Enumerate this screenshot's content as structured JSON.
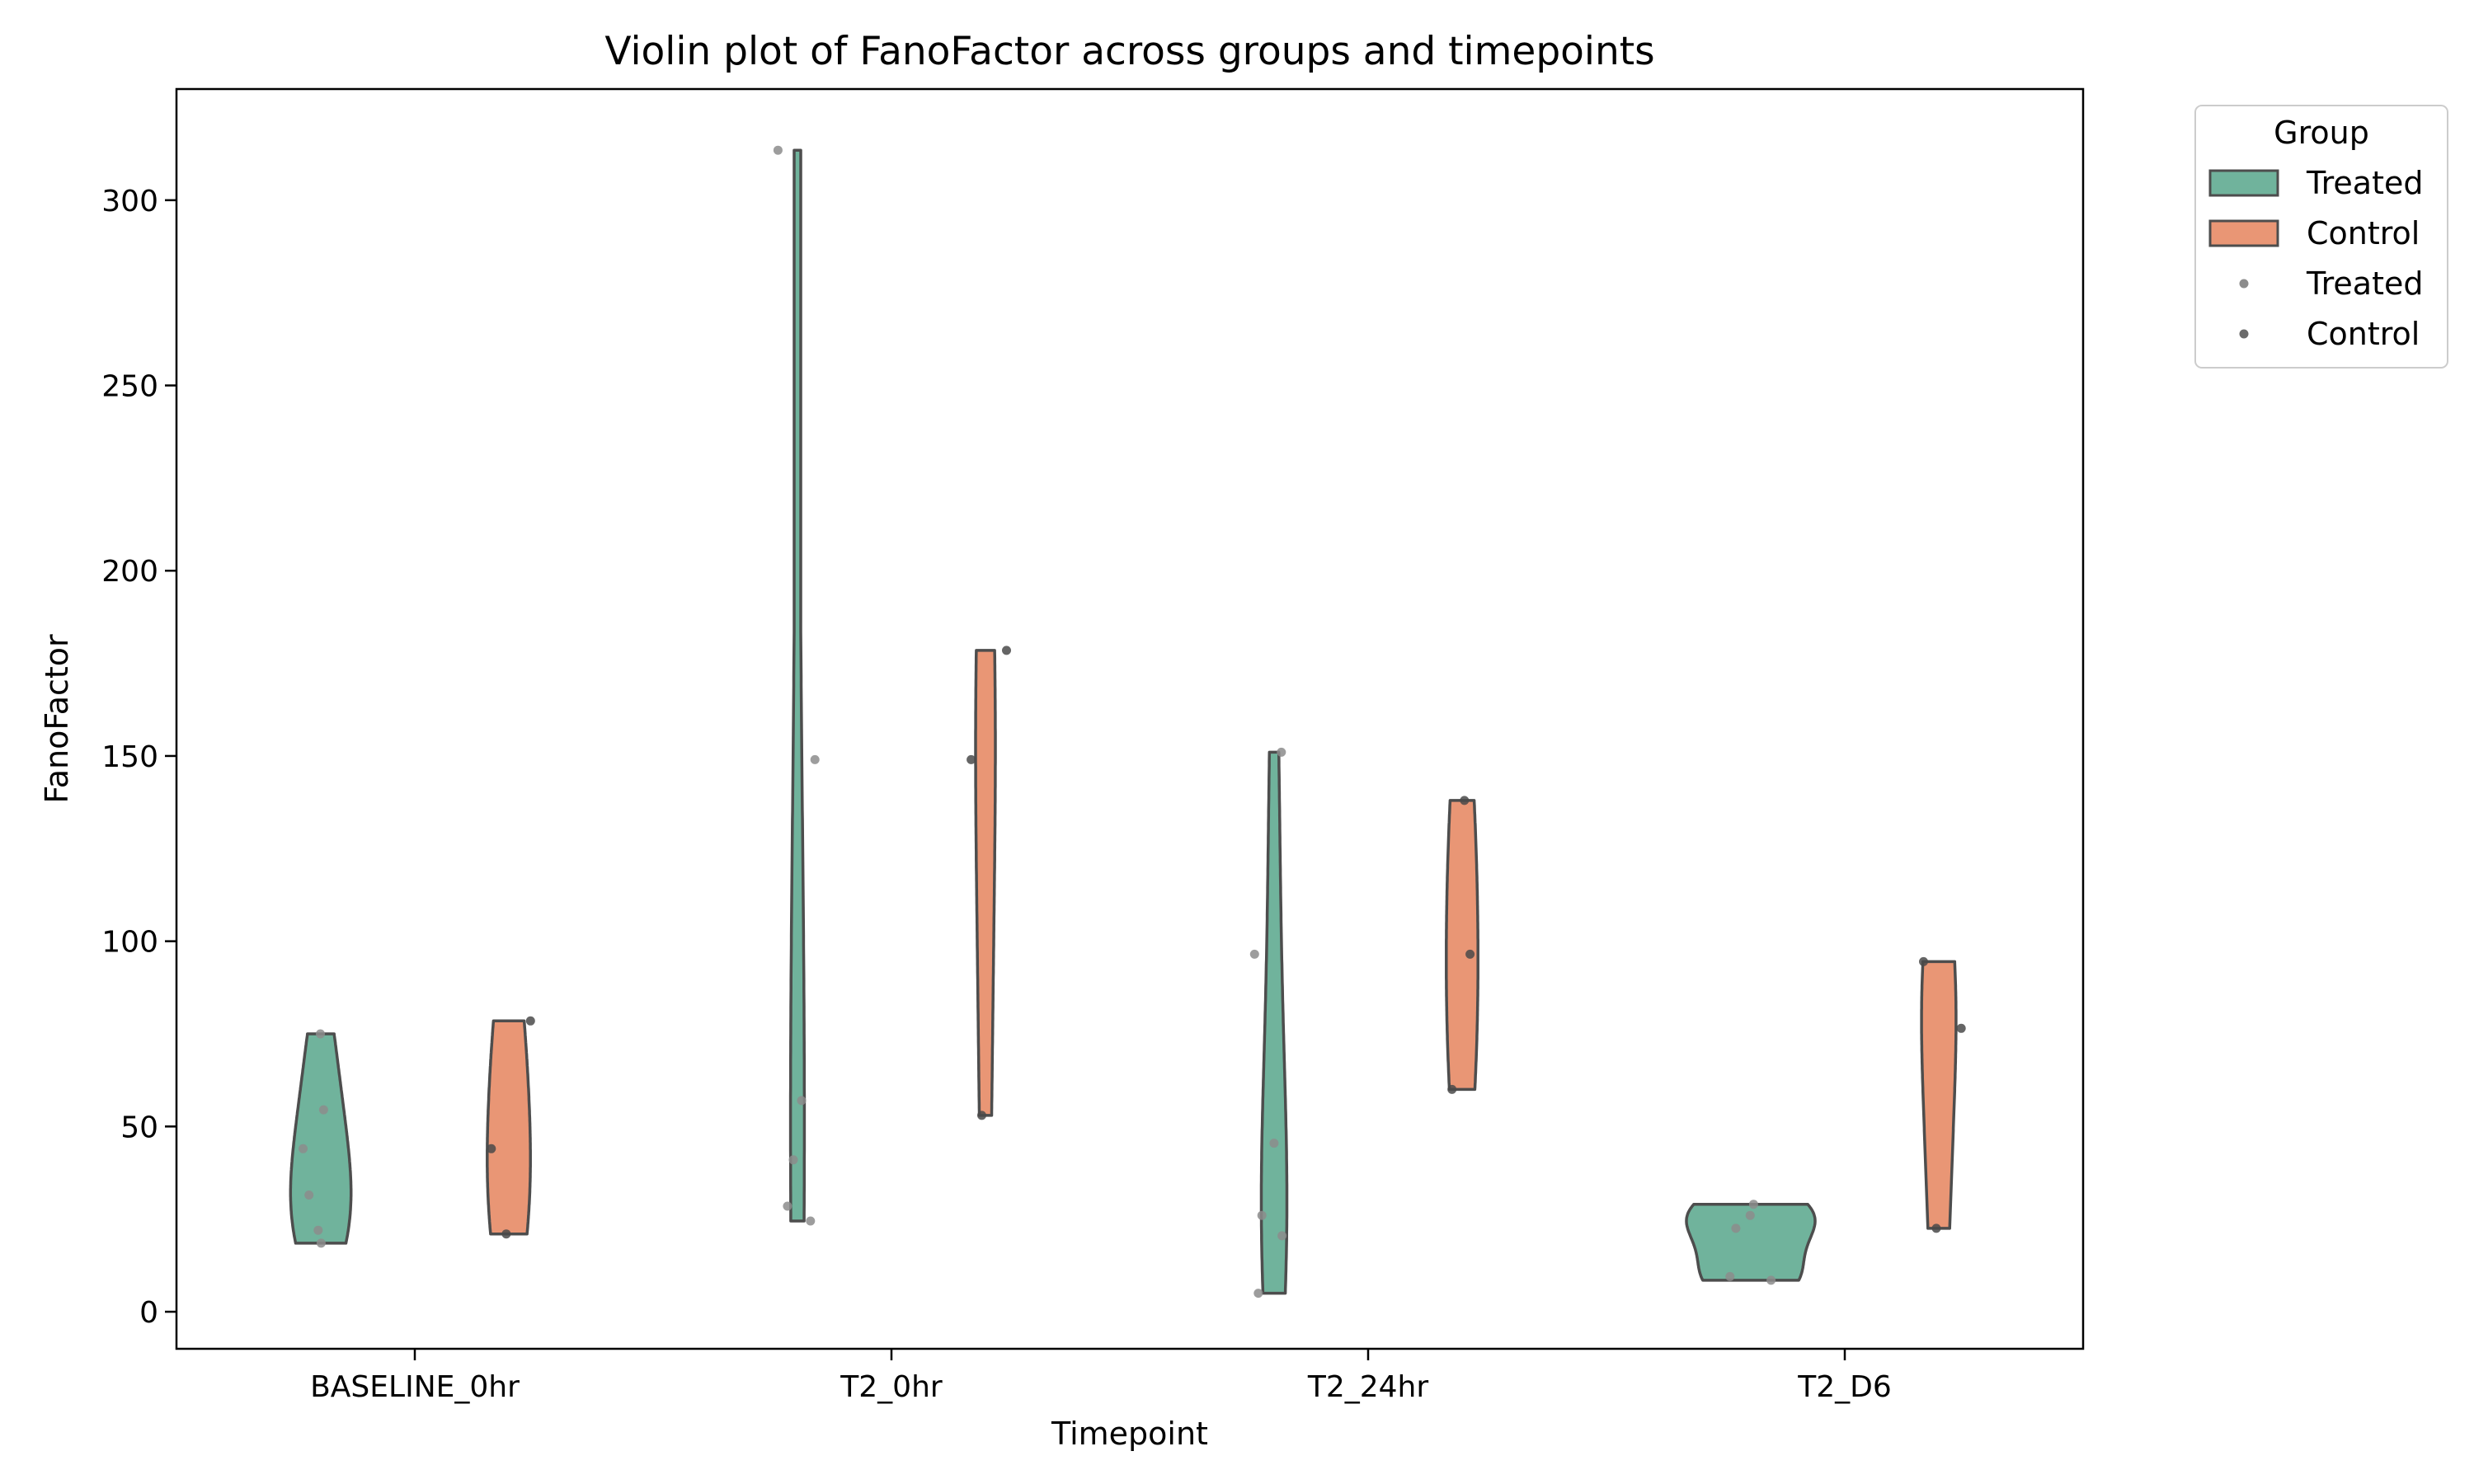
{
  "chart_data": {
    "type": "violin",
    "title": "Violin plot of FanoFactor across groups and timepoints",
    "xlabel": "Timepoint",
    "ylabel": "FanoFactor",
    "ylim": [
      -10,
      330
    ],
    "yticks": [
      0,
      50,
      100,
      150,
      200,
      250,
      300
    ],
    "ytick_labels": [
      "0",
      "50",
      "100",
      "150",
      "200",
      "250",
      "300"
    ],
    "categories": [
      "BASELINE_0hr",
      "T2_0hr",
      "T2_24hr",
      "T2_D6"
    ],
    "grid": false,
    "legend": {
      "title": "Group",
      "placement": "outside-top-right",
      "entries": [
        {
          "label": "Treated",
          "kind": "patch",
          "color": "#70b39c"
        },
        {
          "label": "Control",
          "kind": "patch",
          "color": "#e99675"
        },
        {
          "label": "Treated",
          "kind": "point",
          "color": "#8c8c8c"
        },
        {
          "label": "Control",
          "kind": "point",
          "color": "#6b6b6b"
        }
      ]
    },
    "series": [
      {
        "name": "Treated",
        "color": "#70b39c",
        "points": [
          {
            "category": "BASELINE_0hr",
            "values": [
              75,
              54.5,
              44,
              31.5,
              22,
              18.5
            ]
          },
          {
            "category": "T2_0hr",
            "values": [
              313.5,
              149,
              57,
              41,
              28.5,
              24.5
            ]
          },
          {
            "category": "T2_24hr",
            "values": [
              151,
              96.5,
              45.5,
              26,
              20.5,
              5
            ]
          },
          {
            "category": "T2_D6",
            "values": [
              29,
              26,
              22.5,
              9.5,
              8.5
            ]
          }
        ]
      },
      {
        "name": "Control",
        "color": "#e99675",
        "points": [
          {
            "category": "BASELINE_0hr",
            "values": [
              78.5,
              44,
              21
            ]
          },
          {
            "category": "T2_0hr",
            "values": [
              178.5,
              149,
              53
            ]
          },
          {
            "category": "T2_24hr",
            "values": [
              138,
              96.5,
              60
            ]
          },
          {
            "category": "T2_D6",
            "values": [
              94.5,
              76.5,
              22.5
            ]
          }
        ]
      }
    ]
  }
}
